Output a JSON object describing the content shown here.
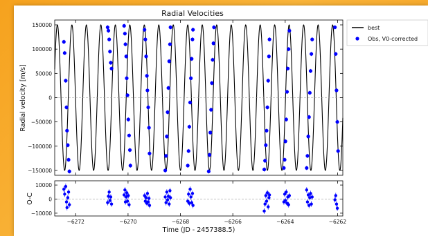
{
  "chart_data": [
    {
      "type": "line",
      "title": "Radial Velocities",
      "ylabel": "Radial velocity [m/s]",
      "xlim": [
        -6272.8,
        -6261.8
      ],
      "ylim": [
        -160000,
        160000
      ],
      "yticks": [
        -150000,
        -100000,
        -50000,
        0,
        50000,
        100000,
        150000
      ],
      "ytick_labels": [
        "−150000",
        "−100000",
        "−50000",
        "0",
        "50000",
        "100000",
        "150000"
      ],
      "grid": false,
      "legend": {
        "position": "outside-top-right",
        "entries": [
          "best",
          "Obs, V0-corrected"
        ]
      },
      "model": {
        "name": "best",
        "amplitude": 150000,
        "period_days": 0.553,
        "color": "#000000"
      },
      "series": [
        {
          "name": "Obs, V0-corrected",
          "color": "#0000ff",
          "x": [
            -6272.45,
            -6272.42,
            -6272.38,
            -6272.35,
            -6272.33,
            -6272.3,
            -6272.27,
            -6272.24,
            -6270.78,
            -6270.75,
            -6270.72,
            -6270.69,
            -6270.66,
            -6270.63,
            -6270.15,
            -6270.12,
            -6270.1,
            -6270.07,
            -6270.05,
            -6270.02,
            -6269.99,
            -6269.96,
            -6269.93,
            -6269.91,
            -6269.37,
            -6269.34,
            -6269.31,
            -6269.28,
            -6269.26,
            -6269.23,
            -6269.2,
            -6269.18,
            -6268.58,
            -6268.55,
            -6268.52,
            -6268.49,
            -6268.46,
            -6268.43,
            -6268.4,
            -6268.38,
            -6267.72,
            -6267.69,
            -6267.66,
            -6267.63,
            -6267.6,
            -6267.57,
            -6267.54,
            -6267.52,
            -6266.92,
            -6266.89,
            -6266.86,
            -6266.83,
            -6266.8,
            -6266.77,
            -6266.74,
            -6266.72,
            -6264.8,
            -6264.77,
            -6264.74,
            -6264.71,
            -6264.68,
            -6264.65,
            -6264.62,
            -6264.6,
            -6264.05,
            -6264.02,
            -6263.99,
            -6263.96,
            -6263.93,
            -6263.9,
            -6263.87,
            -6263.84,
            -6263.18,
            -6263.15,
            -6263.12,
            -6263.09,
            -6263.06,
            -6263.03,
            -6263.0,
            -6262.97,
            -6262.1,
            -6262.07,
            -6262.04,
            -6262.01,
            -6261.98
          ],
          "y": [
            115000,
            92000,
            35000,
            -20000,
            -68000,
            -98000,
            -128000,
            -152000,
            145000,
            138000,
            120000,
            95000,
            72000,
            60000,
            148000,
            132000,
            110000,
            85000,
            40000,
            5000,
            -45000,
            -78000,
            -108000,
            -140000,
            140000,
            120000,
            85000,
            45000,
            15000,
            -20000,
            -62000,
            -115000,
            -150000,
            -120000,
            -80000,
            -30000,
            20000,
            75000,
            110000,
            145000,
            -140000,
            -110000,
            -60000,
            -10000,
            40000,
            80000,
            120000,
            140000,
            -152000,
            -118000,
            -72000,
            -25000,
            30000,
            78000,
            112000,
            145000,
            -148000,
            -130000,
            -98000,
            -68000,
            -20000,
            35000,
            85000,
            120000,
            -145000,
            -128000,
            -90000,
            -45000,
            12000,
            60000,
            100000,
            138000,
            -145000,
            -120000,
            -80000,
            -40000,
            10000,
            55000,
            90000,
            120000,
            145000,
            90000,
            15000,
            -50000,
            -110000
          ]
        }
      ]
    },
    {
      "type": "scatter",
      "xlabel": "Time (JD - 2457388.5)",
      "ylabel": "O-C",
      "xlim": [
        -6272.8,
        -6261.8
      ],
      "ylim": [
        -12000,
        13000
      ],
      "yticks": [
        -10000,
        0,
        10000
      ],
      "ytick_labels": [
        "−10000",
        "0",
        "10000"
      ],
      "xticks": [
        -6272,
        -6270,
        -6268,
        -6266,
        -6264,
        -6262
      ],
      "xtick_labels": [
        "−6272",
        "−6270",
        "−6268",
        "−6266",
        "−6264",
        "−6262"
      ],
      "zero_line": true,
      "series": [
        {
          "name": "residuals",
          "color": "#0000ff",
          "x": [
            -6272.45,
            -6272.42,
            -6272.38,
            -6272.35,
            -6272.33,
            -6272.3,
            -6272.27,
            -6272.24,
            -6270.78,
            -6270.75,
            -6270.72,
            -6270.69,
            -6270.66,
            -6270.63,
            -6270.15,
            -6270.12,
            -6270.1,
            -6270.07,
            -6270.05,
            -6270.02,
            -6269.99,
            -6269.96,
            -6269.37,
            -6269.34,
            -6269.31,
            -6269.28,
            -6269.26,
            -6269.23,
            -6269.2,
            -6269.18,
            -6268.58,
            -6268.55,
            -6268.52,
            -6268.49,
            -6268.46,
            -6268.43,
            -6268.4,
            -6268.38,
            -6267.72,
            -6267.69,
            -6267.66,
            -6267.63,
            -6267.6,
            -6267.57,
            -6267.54,
            -6267.52,
            -6264.8,
            -6264.77,
            -6264.74,
            -6264.71,
            -6264.68,
            -6264.65,
            -6264.62,
            -6264.6,
            -6264.05,
            -6264.02,
            -6263.99,
            -6263.96,
            -6263.93,
            -6263.9,
            -6263.87,
            -6263.84,
            -6263.18,
            -6263.15,
            -6263.12,
            -6263.09,
            -6263.06,
            -6263.03,
            -6263.0,
            -6262.97,
            -6262.1,
            -6262.07,
            -6262.04,
            -6262.01
          ],
          "y": [
            7000,
            3500,
            9000,
            -2000,
            -6000,
            1000,
            5000,
            -4000,
            -2500,
            2000,
            5000,
            -1000,
            1500,
            -3500,
            3000,
            6500,
            -2000,
            1500,
            4500,
            -1500,
            2500,
            -4000,
            2500,
            -1500,
            1000,
            -3000,
            4000,
            -2000,
            500,
            -4500,
            1500,
            -2500,
            5000,
            -500,
            2000,
            -3500,
            6000,
            1000,
            -1500,
            3500,
            -3000,
            7000,
            1500,
            -2500,
            4000,
            -4500,
            -8500,
            -3500,
            2500,
            -1500,
            4500,
            -5500,
            1000,
            3000,
            -2000,
            3500,
            -1000,
            5000,
            -3000,
            1500,
            -4000,
            2500,
            6500,
            -2000,
            3000,
            -4500,
            1000,
            4000,
            -3500,
            1500,
            -500,
            2500,
            -3500,
            -6500
          ]
        }
      ]
    }
  ]
}
